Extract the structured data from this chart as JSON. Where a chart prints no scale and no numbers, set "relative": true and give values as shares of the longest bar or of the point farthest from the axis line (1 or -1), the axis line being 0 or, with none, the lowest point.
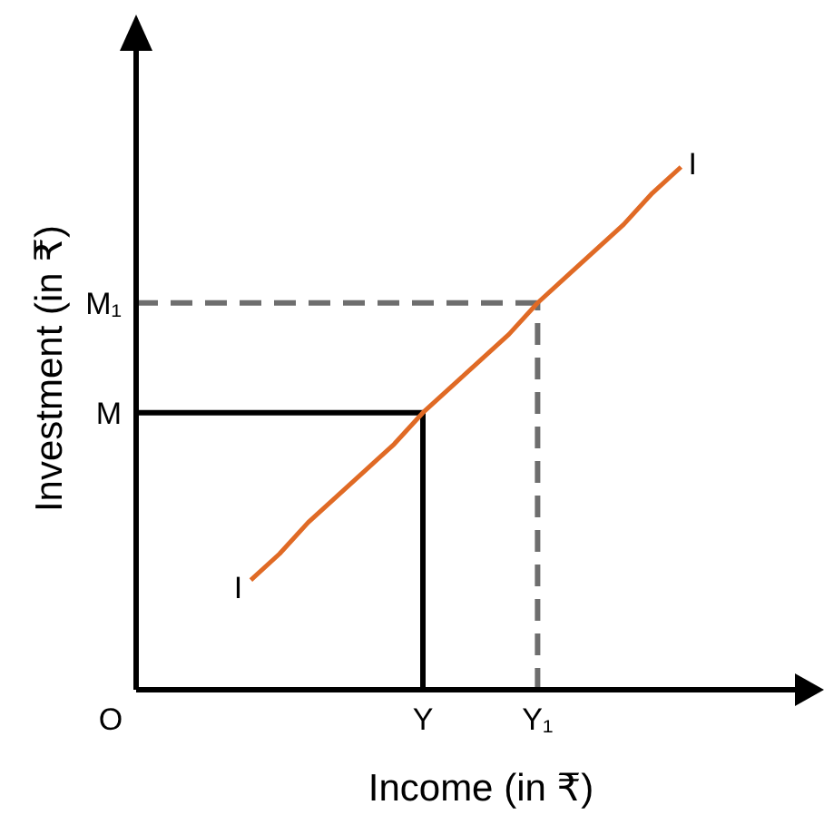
{
  "chart_data": {
    "type": "line",
    "relative": true,
    "xlabel": "Income (in ₹)",
    "ylabel": "Investment (in ₹)",
    "categories": [
      "O",
      null,
      null,
      null,
      null,
      null,
      null,
      null,
      null,
      null,
      "Y",
      null,
      null,
      null,
      "Y₁",
      null,
      null,
      null,
      null,
      null,
      null,
      null,
      null,
      null
    ],
    "series": [
      {
        "color": "#e06a25",
        "values": [
          null,
          null,
          null,
          null,
          0.21,
          0.26,
          0.32,
          0.37,
          0.42,
          0.47,
          0.53,
          0.58,
          0.63,
          0.68,
          0.74,
          0.79,
          0.84,
          0.89,
          0.95,
          1.0,
          null,
          null,
          null,
          null
        ]
      }
    ],
    "annotations": [
      "I",
      "I"
    ],
    "ref_lines": [
      {
        "axis": "y",
        "value": 0.53,
        "label": "M",
        "color": "#000000",
        "line_style": "solid"
      },
      {
        "axis": "x",
        "value": "Y",
        "color": "#000000",
        "line_style": "solid"
      },
      {
        "axis": "y",
        "value": 0.74,
        "label": "M₁",
        "color": "#6e6e6e",
        "line_style": "dashed"
      },
      {
        "axis": "x",
        "value": "Y₁",
        "color": "#6e6e6e",
        "line_style": "dashed"
      }
    ]
  }
}
